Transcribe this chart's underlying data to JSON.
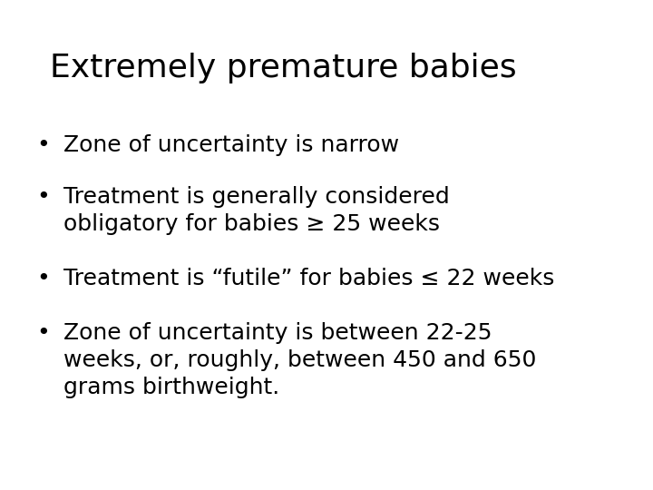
{
  "title": "Extremely premature babies",
  "title_fontsize": 26,
  "background_color": "#ffffff",
  "text_color": "#000000",
  "bullet_points": [
    [
      "Zone of uncertainty is narrow"
    ],
    [
      "Treatment is generally considered",
      "obligatory for babies ≥ 25 weeks"
    ],
    [
      "Treatment is “futile” for babies ≤ 22 weeks"
    ],
    [
      "Zone of uncertainty is between 22-25",
      "weeks, or, roughly, between 450 and 650",
      "grams birthweight."
    ]
  ],
  "bullet_fontsize": 18,
  "font_family": "DejaVu Sans"
}
